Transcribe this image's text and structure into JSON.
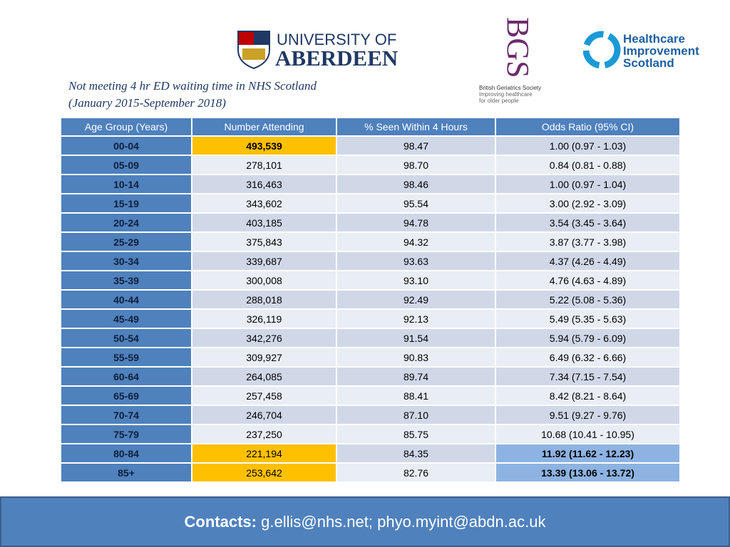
{
  "logos": {
    "aberdeen": {
      "line1": "UNIVERSITY OF",
      "line2": "ABERDEEN"
    },
    "bgs": {
      "mark": "BGS",
      "line1": "British Geriatrics Society",
      "line2": "Improving healthcare",
      "line3": "for older people"
    },
    "his": {
      "line1": "Healthcare",
      "line2": "Improvement",
      "line3": "Scotland"
    }
  },
  "subtitle": {
    "line1": "Not meeting 4 hr ED waiting time in NHS Scotland",
    "line2": "(January 2015-September 2018)"
  },
  "table": {
    "header": [
      "Age Group (Years)",
      "Number Attending",
      "% Seen Within 4 Hours",
      "Odds Ratio (95% CI)"
    ],
    "rows": [
      [
        "00-04",
        "493,539",
        "98.47",
        "1.00 (0.97 - 1.03)"
      ],
      [
        "05-09",
        "278,101",
        "98.70",
        "0.84 (0.81 - 0.88)"
      ],
      [
        "10-14",
        "316,463",
        "98.46",
        "1.00 (0.97 - 1.04)"
      ],
      [
        "15-19",
        "343,602",
        "95.54",
        "3.00 (2.92 - 3.09)"
      ],
      [
        "20-24",
        "403,185",
        "94.78",
        "3.54 (3.45 - 3.64)"
      ],
      [
        "25-29",
        "375,843",
        "94.32",
        "3.87 (3.77 - 3.98)"
      ],
      [
        "30-34",
        "339,687",
        "93.63",
        "4.37 (4.26 - 4.49)"
      ],
      [
        "35-39",
        "300,008",
        "93.10",
        "4.76 (4.63 - 4.89)"
      ],
      [
        "40-44",
        "288,018",
        "92.49",
        "5.22 (5.08 - 5.36)"
      ],
      [
        "45-49",
        "326,119",
        "92.13",
        "5.49 (5.35 - 5.63)"
      ],
      [
        "50-54",
        "342,276",
        "91.54",
        "5.94 (5.79 - 6.09)"
      ],
      [
        "55-59",
        "309,927",
        "90.83",
        "6.49 (6.32 - 6.66)"
      ],
      [
        "60-64",
        "264,085",
        "89.74",
        "7.34 (7.15 - 7.54)"
      ],
      [
        "65-69",
        "257,458",
        "88.41",
        "8.42 (8.21 - 8.64)"
      ],
      [
        "70-74",
        "246,704",
        "87.10",
        "9.51 (9.27 - 9.76)"
      ],
      [
        "75-79",
        "237,250",
        "85.75",
        "10.68 (10.41 - 10.95)"
      ],
      [
        "80-84",
        "221,194",
        "84.35",
        "11.92 (11.62 - 12.23)"
      ],
      [
        "85+",
        "253,642",
        "82.76",
        "13.39 (13.06 - 13.72)"
      ]
    ]
  },
  "footer": {
    "label": "Contacts:",
    "text": "g.ellis@nhs.net; phyo.myint@abdn.ac.uk"
  }
}
